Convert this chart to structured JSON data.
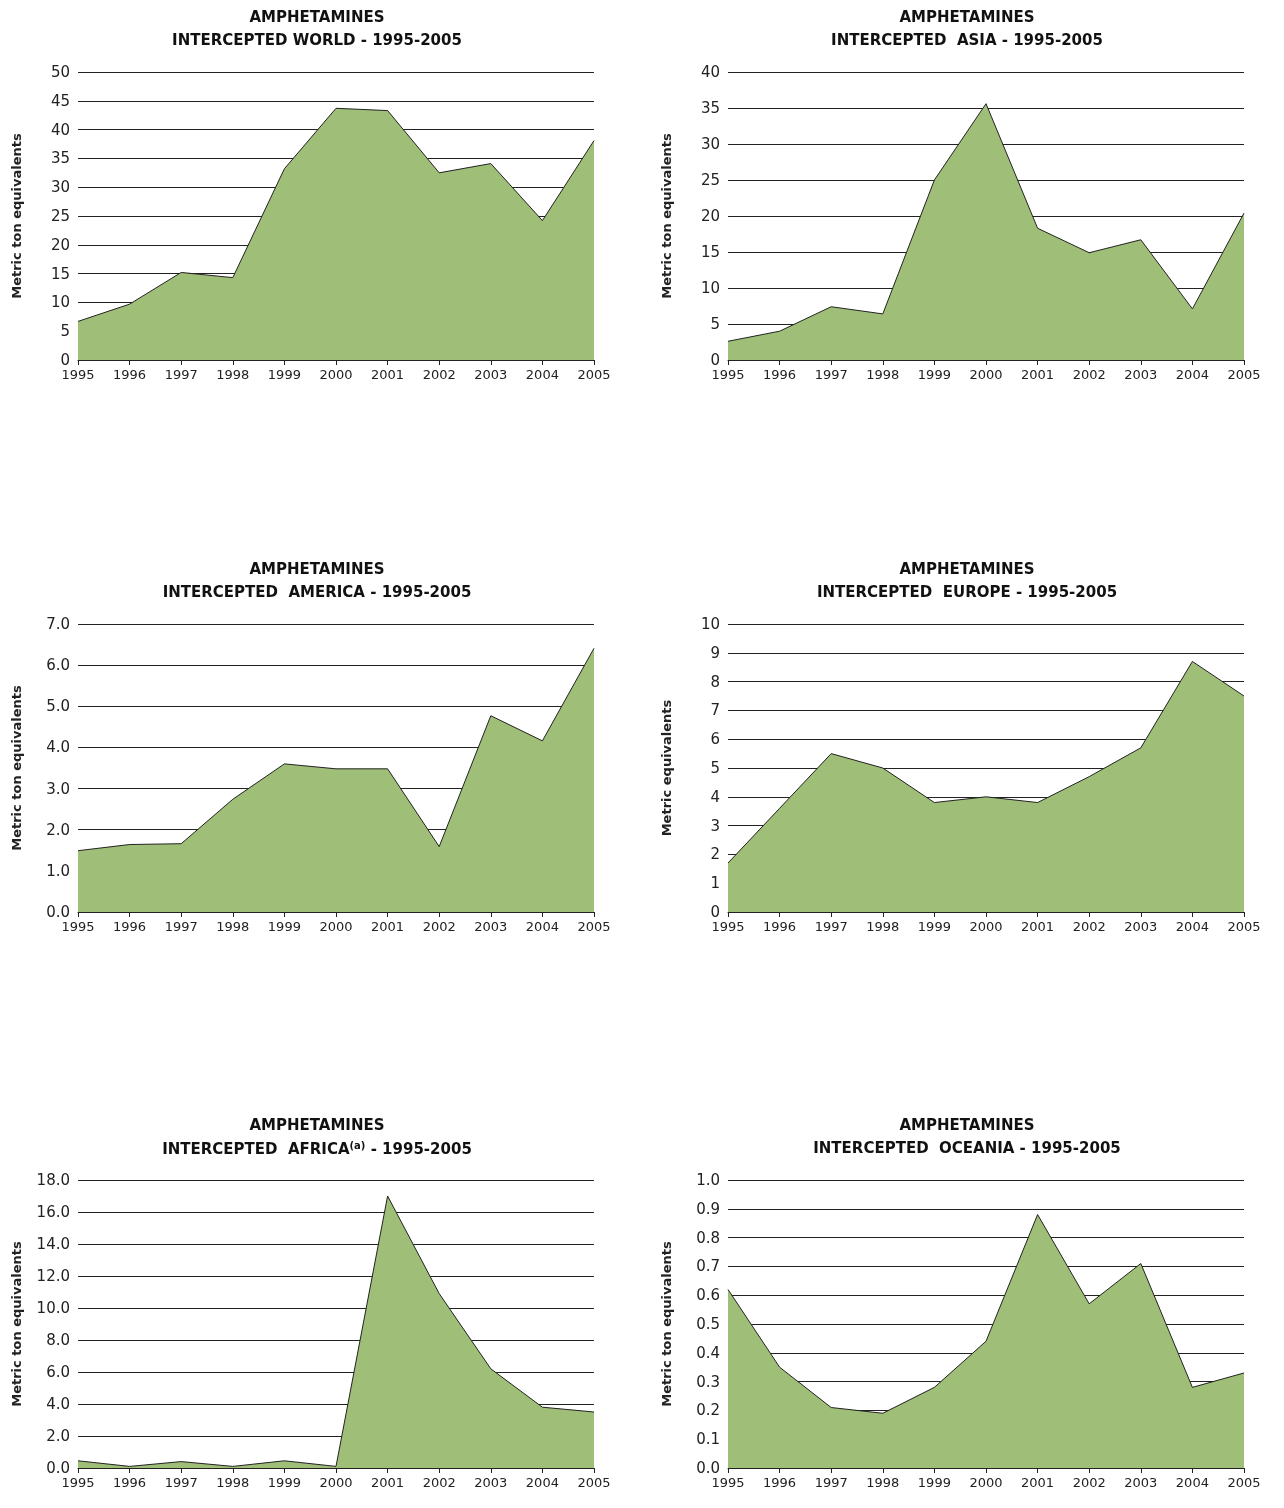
{
  "chart_data": [
    {
      "type": "area",
      "title": "AMPHETAMINES",
      "subtitle": "INTERCEPTED WORLD - 1995-2005",
      "ylabel": "Metric ton equivalents",
      "categories": [
        "1995",
        "1996",
        "1997",
        "1998",
        "1999",
        "2000",
        "2001",
        "2002",
        "2003",
        "2004",
        "2005"
      ],
      "series": [
        {
          "color": "#9fbe78",
          "values": [
            6.7,
            9.7,
            15.2,
            14.3,
            33.2,
            43.7,
            43.3,
            32.5,
            34.1,
            24.2,
            38.1
          ]
        }
      ],
      "ylim": [
        0,
        50
      ],
      "yticks": [
        0,
        5,
        10,
        15,
        20,
        25,
        30,
        35,
        40,
        45,
        50
      ],
      "grid": "y"
    },
    {
      "type": "area",
      "title": "AMPHETAMINES",
      "subtitle": "INTERCEPTED  ASIA - 1995-2005",
      "ylabel": "Metric ton equivalents",
      "categories": [
        "1995",
        "1996",
        "1997",
        "1998",
        "1999",
        "2000",
        "2001",
        "2002",
        "2003",
        "2004",
        "2005"
      ],
      "series": [
        {
          "color": "#9fbe78",
          "values": [
            2.6,
            4.0,
            7.4,
            6.4,
            25.0,
            35.6,
            18.3,
            14.9,
            16.7,
            7.1,
            20.4
          ]
        }
      ],
      "ylim": [
        0,
        40
      ],
      "yticks": [
        0,
        5,
        10,
        15,
        20,
        25,
        30,
        35,
        40
      ],
      "grid": "y"
    },
    {
      "type": "area",
      "title": "AMPHETAMINES",
      "subtitle": "INTERCEPTED  AMERICA - 1995-2005",
      "ylabel": "Metric ton equivalents",
      "categories": [
        "1995",
        "1996",
        "1997",
        "1998",
        "1999",
        "2000",
        "2001",
        "2002",
        "2003",
        "2004",
        "2005"
      ],
      "series": [
        {
          "color": "#9fbe78",
          "values": [
            1.49,
            1.64,
            1.66,
            2.74,
            3.6,
            3.48,
            3.48,
            1.59,
            4.77,
            4.16,
            6.41
          ]
        }
      ],
      "ylim": [
        0,
        7
      ],
      "yticks": [
        {
          "value": 0,
          "label": "0.0"
        },
        {
          "value": 1,
          "label": "1.0"
        },
        {
          "value": 2,
          "label": "2.0"
        },
        {
          "value": 3,
          "label": "3.0"
        },
        {
          "value": 4,
          "label": "4.0"
        },
        {
          "value": 5,
          "label": "5.0"
        },
        {
          "value": 6,
          "label": "6.0"
        },
        {
          "value": 7,
          "label": "7.0"
        }
      ],
      "grid": "y"
    },
    {
      "type": "area",
      "title": "AMPHETAMINES",
      "subtitle": "INTERCEPTED  EUROPE - 1995-2005",
      "ylabel": "Metric equivalents",
      "categories": [
        "1995",
        "1996",
        "1997",
        "1998",
        "1999",
        "2000",
        "2001",
        "2002",
        "2003",
        "2004",
        "2005"
      ],
      "series": [
        {
          "color": "#9fbe78",
          "values": [
            1.7,
            3.6,
            5.5,
            5.0,
            3.8,
            4.0,
            3.8,
            4.7,
            5.7,
            8.7,
            7.5
          ]
        }
      ],
      "ylim": [
        0,
        10
      ],
      "yticks": [
        0,
        1,
        2,
        3,
        4,
        5,
        6,
        7,
        8,
        9,
        10
      ],
      "grid": "y"
    },
    {
      "type": "area",
      "title": "AMPHETAMINES",
      "subtitle": "INTERCEPTED  AFRICA$^{(a)}$ - 1995-2005",
      "ylabel": "Metric ton equivalents",
      "categories": [
        "1995",
        "1996",
        "1997",
        "1998",
        "1999",
        "2000",
        "2001",
        "2002",
        "2003",
        "2004",
        "2005"
      ],
      "series": [
        {
          "color": "#9fbe78",
          "values": [
            0.45,
            0.1,
            0.4,
            0.1,
            0.45,
            0.1,
            17.0,
            10.9,
            6.2,
            3.8,
            3.5
          ]
        }
      ],
      "ylim": [
        0,
        18
      ],
      "yticks": [
        {
          "value": 0,
          "label": "0.0"
        },
        {
          "value": 2,
          "label": "2.0"
        },
        {
          "value": 4,
          "label": "4.0"
        },
        {
          "value": 6,
          "label": "6.0"
        },
        {
          "value": 8,
          "label": "8.0"
        },
        {
          "value": 10,
          "label": "10.0"
        },
        {
          "value": 12,
          "label": "12.0"
        },
        {
          "value": 14,
          "label": "14.0"
        },
        {
          "value": 16,
          "label": "16.0"
        },
        {
          "value": 18,
          "label": "18.0"
        }
      ],
      "grid": "y"
    },
    {
      "type": "area",
      "title": "AMPHETAMINES",
      "subtitle": "INTERCEPTED  OCEANIA - 1995-2005",
      "ylabel": "Metric ton equivalents",
      "categories": [
        "1995",
        "1996",
        "1997",
        "1998",
        "1999",
        "2000",
        "2001",
        "2002",
        "2003",
        "2004",
        "2005"
      ],
      "series": [
        {
          "color": "#9fbe78",
          "values": [
            0.62,
            0.35,
            0.21,
            0.19,
            0.28,
            0.44,
            0.88,
            0.57,
            0.71,
            0.28,
            0.33
          ]
        }
      ],
      "ylim": [
        0,
        1
      ],
      "yticks": [
        {
          "value": 0,
          "label": "0.0"
        },
        0.1,
        0.2,
        0.3,
        0.4,
        0.5,
        0.6,
        0.7,
        0.8,
        0.9,
        {
          "value": 1,
          "label": "1.0"
        }
      ],
      "grid": "y"
    }
  ]
}
